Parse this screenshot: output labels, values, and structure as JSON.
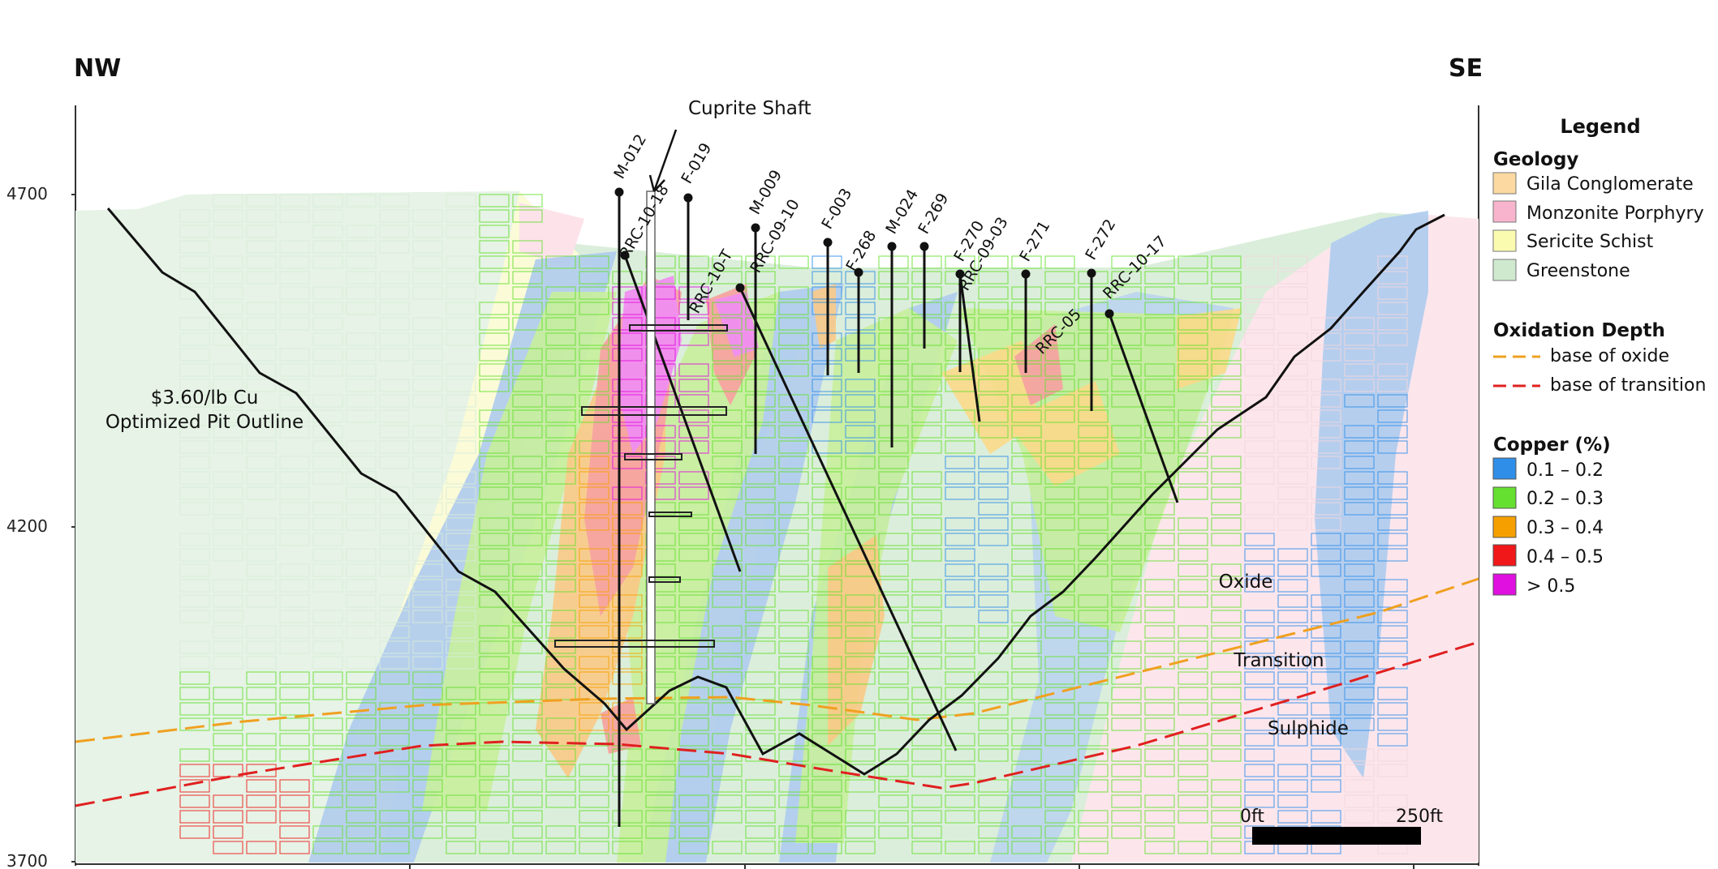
{
  "directions": {
    "left": "NW",
    "right": "SE"
  },
  "elevations": [
    "4700",
    "4200",
    "3700"
  ],
  "labels": {
    "shaft": "Cuprite Shaft",
    "pit_line1": "$3.60/lb Cu",
    "pit_line2": "Optimized Pit Outline",
    "oxide": "Oxide",
    "transition": "Transition",
    "sulphide": "Sulphide"
  },
  "scale_bar": {
    "start": "0ft",
    "end": "250ft"
  },
  "drill_holes": [
    "M-012",
    "F-019",
    "RRC-10-18",
    "RRC-10-T",
    "M-009",
    "RRC-09-10",
    "F-003",
    "F-268",
    "M-024",
    "F-269",
    "F-270",
    "RRC-09-03",
    "F-271",
    "RRC-05",
    "F-272",
    "RRC-10-17"
  ],
  "legend": {
    "title": "Legend",
    "geology": {
      "heading": "Geology",
      "items": [
        {
          "label": "Gila Conglomerate",
          "color": "#fbd9a0"
        },
        {
          "label": "Monzonite Porphyry",
          "color": "#f8b4cc"
        },
        {
          "label": "Sericite Schist",
          "color": "#fbfbb0"
        },
        {
          "label": "Greenstone",
          "color": "#cfe9cf"
        }
      ]
    },
    "oxidation": {
      "heading": "Oxidation Depth",
      "items": [
        {
          "label": "base of oxide",
          "color": "#f0a020"
        },
        {
          "label": "base of transition",
          "color": "#e02020"
        }
      ]
    },
    "copper": {
      "heading": "Copper (%)",
      "items": [
        {
          "label": "0.1 – 0.2",
          "color": "#2f8fe8"
        },
        {
          "label": "0.2 – 0.3",
          "color": "#66e030"
        },
        {
          "label": "0.3 – 0.4",
          "color": "#f5a000"
        },
        {
          "label": "0.4 – 0.5",
          "color": "#f01818"
        },
        {
          "label": "> 0.5",
          "color": "#e010e0"
        }
      ]
    }
  }
}
